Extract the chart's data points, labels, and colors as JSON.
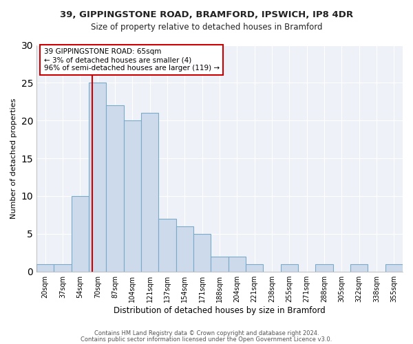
{
  "title1": "39, GIPPINGSTONE ROAD, BRAMFORD, IPSWICH, IP8 4DR",
  "title2": "Size of property relative to detached houses in Bramford",
  "xlabel": "Distribution of detached houses by size in Bramford",
  "ylabel": "Number of detached properties",
  "bar_labels": [
    "20sqm",
    "37sqm",
    "54sqm",
    "70sqm",
    "87sqm",
    "104sqm",
    "121sqm",
    "137sqm",
    "154sqm",
    "171sqm",
    "188sqm",
    "204sqm",
    "221sqm",
    "238sqm",
    "255sqm",
    "271sqm",
    "288sqm",
    "305sqm",
    "322sqm",
    "338sqm",
    "355sqm"
  ],
  "bar_values": [
    1,
    1,
    10,
    25,
    22,
    20,
    21,
    7,
    6,
    5,
    2,
    2,
    1,
    0,
    1,
    0,
    1,
    0,
    1,
    0,
    1
  ],
  "bar_color": "#ccdaeb",
  "bar_edgecolor": "#7aaac8",
  "ylim": [
    0,
    30
  ],
  "yticks": [
    0,
    5,
    10,
    15,
    20,
    25,
    30
  ],
  "annotation_text": "39 GIPPINGSTONE ROAD: 65sqm\n← 3% of detached houses are smaller (4)\n96% of semi-detached houses are larger (119) →",
  "annotation_box_color": "#ffffff",
  "annotation_box_edgecolor": "#cc0000",
  "red_line_color": "#cc0000",
  "footer1": "Contains HM Land Registry data © Crown copyright and database right 2024.",
  "footer2": "Contains public sector information licensed under the Open Government Licence v3.0.",
  "background_color": "#ffffff",
  "plot_bg_color": "#eef2f8"
}
